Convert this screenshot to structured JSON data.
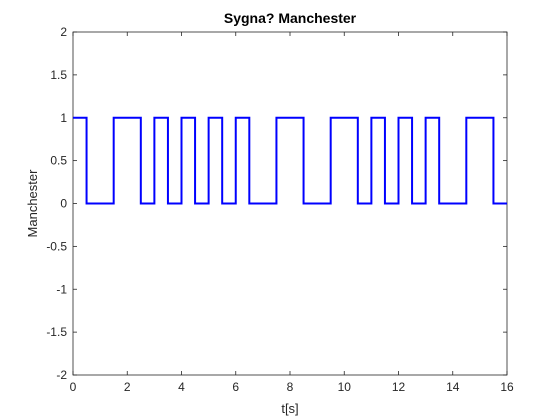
{
  "chart_data": {
    "type": "line",
    "title": "Sygna? Manchester",
    "xlabel": "t[s]",
    "ylabel": "Manchester",
    "xlim": [
      0,
      16
    ],
    "ylim": [
      -2,
      2
    ],
    "xticks": [
      0,
      2,
      4,
      6,
      8,
      10,
      12,
      14,
      16
    ],
    "yticks": [
      -2,
      -1.5,
      -1,
      -0.5,
      0,
      0.5,
      1,
      1.5,
      2
    ],
    "xtick_labels": [
      "0",
      "2",
      "4",
      "6",
      "8",
      "10",
      "12",
      "14",
      "16"
    ],
    "ytick_labels": [
      "-2",
      "-1.5",
      "-1",
      "-0.5",
      "0",
      "0.5",
      "1",
      "1.5",
      "2"
    ],
    "grid": false,
    "step": "post",
    "series_color": "#0000ff",
    "series": [
      {
        "x": [
          0,
          0.5,
          1.5,
          2.5,
          3,
          3.5,
          4,
          4.5,
          5,
          5.5,
          6,
          6.5,
          7.5,
          8.5,
          9.5,
          10.5,
          11,
          11.5,
          12,
          12.5,
          13,
          13.5,
          14.5,
          15.5,
          16
        ],
        "y": [
          1,
          0,
          1,
          0,
          1,
          0,
          1,
          0,
          1,
          0,
          1,
          0,
          1,
          0,
          1,
          0,
          1,
          0,
          1,
          0,
          1,
          0,
          1,
          0,
          0
        ]
      }
    ]
  }
}
